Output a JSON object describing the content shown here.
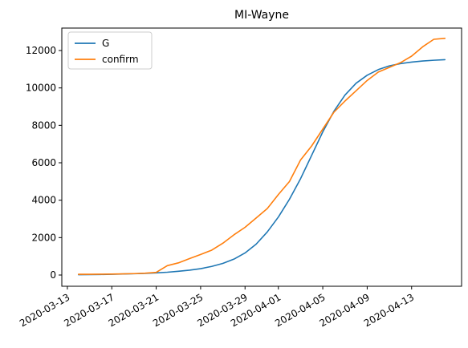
{
  "chart_data": {
    "type": "line",
    "title": "MI-Wayne",
    "xlabel": "",
    "ylabel": "",
    "x_ticks": [
      "2020-03-13",
      "2020-03-17",
      "2020-03-21",
      "2020-03-25",
      "2020-03-29",
      "2020-04-01",
      "2020-04-05",
      "2020-04-09",
      "2020-04-13"
    ],
    "x_tick_dates": [
      "2020-03-13",
      "2020-03-17",
      "2020-03-21",
      "2020-03-25",
      "2020-03-29",
      "2020-04-01",
      "2020-04-05",
      "2020-04-09",
      "2020-04-13"
    ],
    "y_ticks": [
      0,
      2000,
      4000,
      6000,
      8000,
      10000,
      12000
    ],
    "ylim": [
      -600,
      13200
    ],
    "xlim": [
      "2020-03-12T12:00",
      "2020-04-17T12:00"
    ],
    "grid": false,
    "legend_position": "top-left",
    "x": [
      "2020-03-14",
      "2020-03-15",
      "2020-03-16",
      "2020-03-17",
      "2020-03-18",
      "2020-03-19",
      "2020-03-20",
      "2020-03-21",
      "2020-03-22",
      "2020-03-23",
      "2020-03-24",
      "2020-03-25",
      "2020-03-26",
      "2020-03-27",
      "2020-03-28",
      "2020-03-29",
      "2020-03-30",
      "2020-03-31",
      "2020-04-01",
      "2020-04-02",
      "2020-04-03",
      "2020-04-04",
      "2020-04-05",
      "2020-04-06",
      "2020-04-07",
      "2020-04-08",
      "2020-04-09",
      "2020-04-10",
      "2020-04-11",
      "2020-04-12",
      "2020-04-13",
      "2020-04-14",
      "2020-04-15",
      "2020-04-16"
    ],
    "series": [
      {
        "name": "G",
        "color": "#1f77b4",
        "values": [
          20,
          25,
          30,
          40,
          55,
          70,
          90,
          115,
          150,
          200,
          260,
          340,
          460,
          620,
          850,
          1180,
          1650,
          2300,
          3100,
          4050,
          5150,
          6400,
          7650,
          8750,
          9620,
          10250,
          10680,
          10980,
          11180,
          11300,
          11380,
          11440,
          11480,
          11510
        ]
      },
      {
        "name": "confirm",
        "color": "#ff7f0e",
        "values": [
          40,
          42,
          45,
          50,
          60,
          75,
          100,
          140,
          500,
          650,
          880,
          1100,
          1330,
          1700,
          2150,
          2550,
          3050,
          3550,
          4300,
          5000,
          6150,
          6900,
          7800,
          8700,
          9300,
          9850,
          10400,
          10850,
          11100,
          11350,
          11700,
          12200,
          12600,
          12650
        ]
      }
    ]
  }
}
